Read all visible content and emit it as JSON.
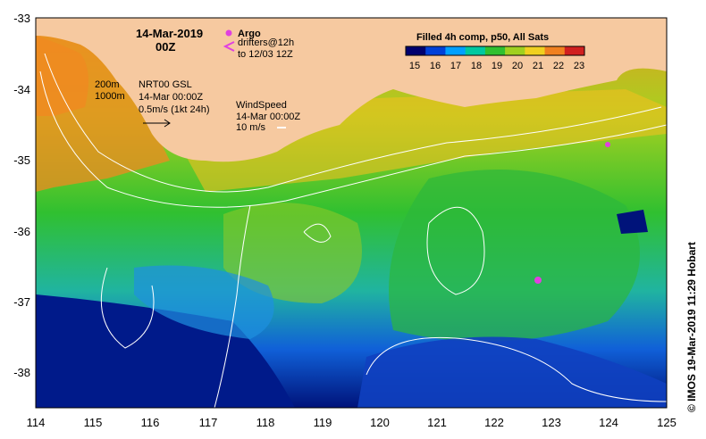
{
  "map": {
    "date": "14-Mar-2019",
    "time": "00Z",
    "argo_label": "Argo",
    "drifters_label": "drifters@12h",
    "drifters_range": "to 12/03 12Z",
    "colorbar_title": "Filled 4h comp, p50, All Sats",
    "colorbar_ticks": [
      "15",
      "16",
      "17",
      "18",
      "19",
      "20",
      "21",
      "22",
      "23"
    ],
    "isobath_1": "200m",
    "isobath_2": "1000m",
    "current_source": "NRT00 GSL",
    "current_time": "14-Mar 00:00Z",
    "current_scale": "0.5m/s (1kt 24h)",
    "wind_title": "WindSpeed",
    "wind_time": "14-Mar 00:00Z",
    "wind_scale": "10 m/s",
    "credit": "© IMOS 19-Mar-2019 11:29 Hobart",
    "lon_ticks": [
      "114",
      "115",
      "116",
      "117",
      "118",
      "119",
      "120",
      "121",
      "122",
      "123",
      "124",
      "125"
    ],
    "lat_ticks": [
      "-33",
      "-34",
      "-35",
      "-36",
      "-37",
      "-38"
    ],
    "colors": {
      "land": "#f6c9a0",
      "ocean_cold": "#00137a",
      "ocean_mid": "#22b44a",
      "ocean_warm": "#f0c020",
      "argo": "#e040e0",
      "contour": "#ffffff",
      "colorbar": [
        "#00006e",
        "#0040d8",
        "#00a0ff",
        "#00c8a0",
        "#30c030",
        "#a0d020",
        "#f0d020",
        "#f08020",
        "#d02020"
      ]
    }
  }
}
